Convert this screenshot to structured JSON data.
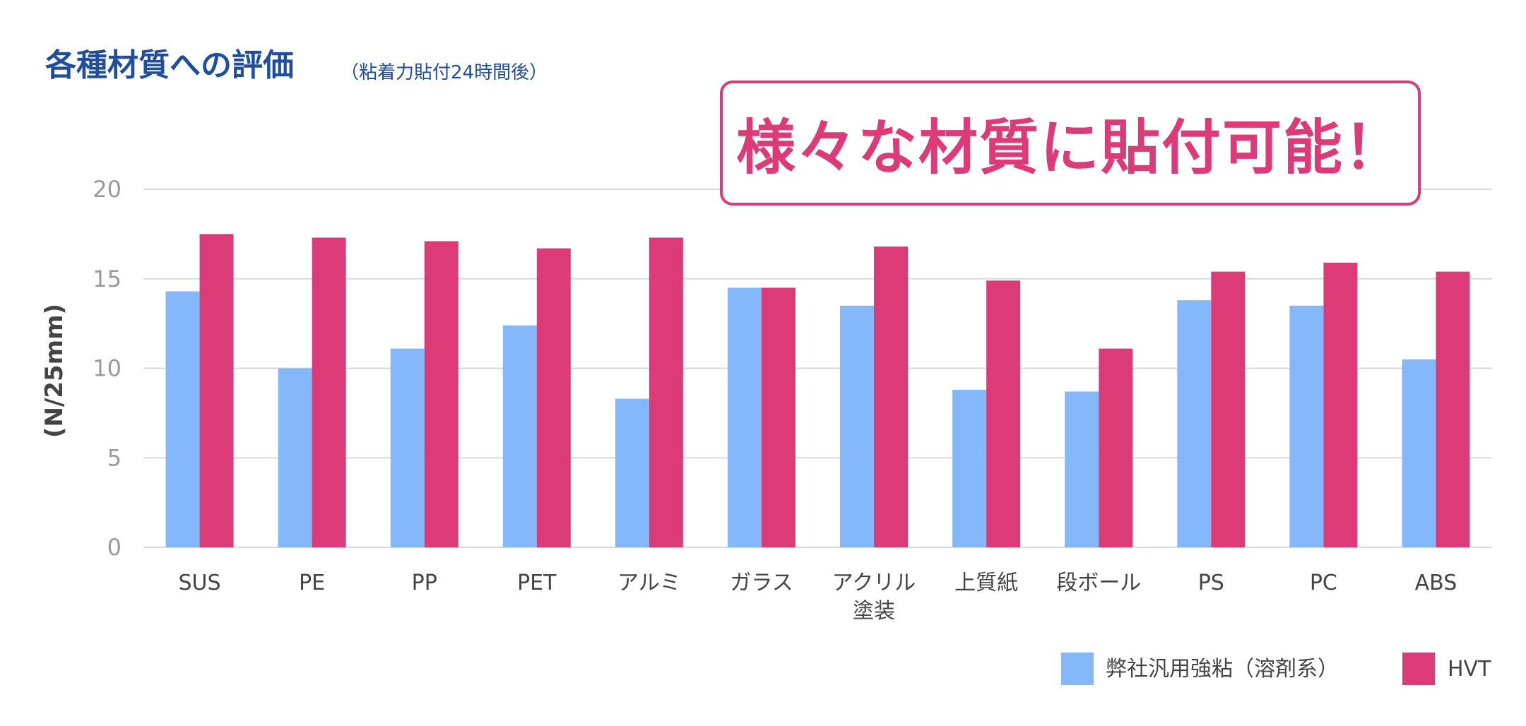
{
  "header": {
    "title": "各種材質への評価",
    "subtitle": "（粘着力貼付24時間後）",
    "callout": "様々な材質に貼付可能！"
  },
  "colors": {
    "series1": "#85b7fb",
    "series2": "#dd3a78",
    "title": "#1f4e9e",
    "grid": "#d9d9d9"
  },
  "chart_data": {
    "type": "bar",
    "ylabel": "(N/25mm)",
    "xlabel": "",
    "ylim": [
      0,
      20
    ],
    "yticks": [
      0,
      5,
      10,
      15,
      20
    ],
    "grid": true,
    "legend": "bottom-right",
    "categories": [
      "SUS",
      "PE",
      "PP",
      "PET",
      "アルミ",
      "ガラス",
      "アクリル\n塗装",
      "上質紙",
      "段ボール",
      "PS",
      "PC",
      "ABS"
    ],
    "series": [
      {
        "name": "弊社汎用強粘（溶剤系）",
        "values": [
          14.3,
          10.0,
          11.1,
          12.4,
          8.3,
          14.5,
          13.5,
          8.8,
          8.7,
          13.8,
          13.5,
          10.5
        ]
      },
      {
        "name": "HVT",
        "values": [
          17.5,
          17.3,
          17.1,
          16.7,
          17.3,
          14.5,
          16.8,
          14.9,
          11.1,
          15.4,
          15.9,
          15.4
        ]
      }
    ]
  }
}
